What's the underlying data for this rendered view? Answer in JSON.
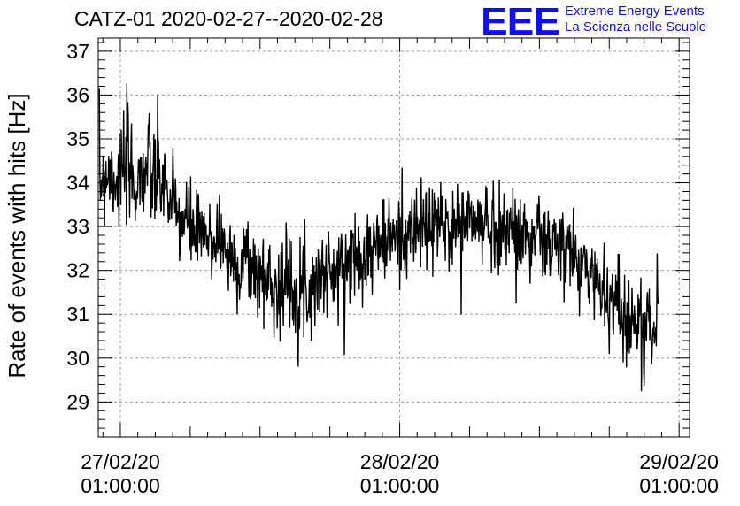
{
  "title": "CATZ-01 2020-02-27--2020-02-28",
  "logo": {
    "mark": "EEE",
    "line1": "Extreme Energy Events",
    "line2": "La Scienza nelle Scuole",
    "color": "#1010ee"
  },
  "chart_data": {
    "type": "line",
    "title": "CATZ-01 2020-02-27--2020-02-28",
    "xlabel": "",
    "ylabel": "Rate of events with hits [Hz]",
    "ylim": [
      28.2,
      37.3
    ],
    "xlim_hours": [
      -1.9,
      48.9
    ],
    "x_axis_start": "27/02/20 01:00:00",
    "x_ticks": [
      {
        "hours": 0,
        "line1": "27/02/20",
        "line2": "01:00:00"
      },
      {
        "hours": 24,
        "line1": "28/02/20",
        "line2": "01:00:00"
      },
      {
        "hours": 48,
        "line1": "29/02/20",
        "line2": "01:00:00"
      }
    ],
    "y_ticks": [
      29,
      30,
      31,
      32,
      33,
      34,
      35,
      36,
      37
    ],
    "grid": true,
    "line_color": "#000000",
    "series": [
      {
        "x_hours": [
          -1.8,
          -1.2,
          -0.6,
          0.0,
          0.6,
          1.2,
          1.8,
          2.4,
          3.0,
          3.6,
          4.2,
          4.8,
          5.4,
          6.0,
          6.6,
          7.2,
          7.8,
          8.4,
          9.0,
          9.6,
          10.2,
          10.8,
          11.4,
          12.0,
          12.6,
          13.2,
          13.8,
          14.4,
          15.0,
          15.6,
          16.2,
          16.8,
          17.4,
          18.0,
          18.6,
          19.2,
          19.8,
          20.4,
          21.0,
          21.6,
          22.2,
          22.8,
          23.4,
          24.0,
          24.6,
          25.2,
          25.8,
          26.4,
          27.0,
          27.6,
          28.2,
          28.8,
          29.4,
          30.0,
          30.6,
          31.2,
          31.8,
          32.4,
          33.0,
          33.6,
          34.2,
          34.8,
          35.4,
          36.0,
          36.6,
          37.2,
          37.8,
          38.4,
          39.0,
          39.6,
          40.2,
          40.8,
          41.4,
          42.0,
          42.6,
          43.2,
          43.8,
          44.4,
          45.0,
          45.6,
          46.2
        ],
        "values": [
          34.0,
          34.3,
          34.2,
          34.1,
          34.4,
          34.0,
          34.2,
          34.3,
          34.0,
          34.1,
          33.6,
          33.3,
          33.1,
          33.0,
          32.8,
          32.7,
          32.6,
          32.9,
          32.5,
          32.2,
          32.1,
          32.3,
          32.0,
          31.9,
          31.8,
          31.7,
          31.6,
          31.8,
          31.6,
          31.7,
          31.5,
          31.8,
          31.9,
          32.0,
          31.8,
          32.2,
          32.3,
          32.4,
          32.5,
          32.4,
          32.7,
          32.6,
          32.8,
          32.7,
          32.9,
          32.8,
          33.0,
          32.9,
          33.1,
          33.0,
          32.9,
          33.1,
          33.0,
          33.2,
          33.1,
          33.0,
          33.1,
          32.9,
          33.0,
          32.9,
          32.8,
          32.9,
          32.7,
          32.8,
          32.6,
          32.5,
          32.6,
          32.4,
          32.3,
          32.1,
          32.0,
          31.8,
          31.6,
          31.4,
          31.3,
          31.0,
          30.9,
          30.8,
          30.6,
          30.7,
          30.9
        ],
        "spread": [
          0.55,
          0.6,
          0.6,
          0.6,
          0.65,
          0.65,
          0.6,
          0.6,
          0.6,
          0.6,
          0.55,
          0.55,
          0.5,
          0.5,
          0.5,
          0.5,
          0.5,
          0.5,
          0.5,
          0.5,
          0.5,
          0.5,
          0.5,
          0.5,
          0.5,
          0.5,
          0.55,
          0.55,
          0.55,
          0.5,
          0.5,
          0.5,
          0.5,
          0.5,
          0.5,
          0.5,
          0.5,
          0.5,
          0.5,
          0.5,
          0.5,
          0.5,
          0.5,
          0.5,
          0.5,
          0.5,
          0.5,
          0.5,
          0.5,
          0.5,
          0.5,
          0.5,
          0.5,
          0.5,
          0.5,
          0.5,
          0.5,
          0.5,
          0.5,
          0.5,
          0.5,
          0.5,
          0.5,
          0.5,
          0.5,
          0.5,
          0.5,
          0.5,
          0.5,
          0.5,
          0.5,
          0.5,
          0.5,
          0.5,
          0.5,
          0.55,
          0.55,
          0.55,
          0.6,
          0.6,
          0.55
        ],
        "samples_per_hour": 25,
        "seed": 7
      }
    ]
  }
}
